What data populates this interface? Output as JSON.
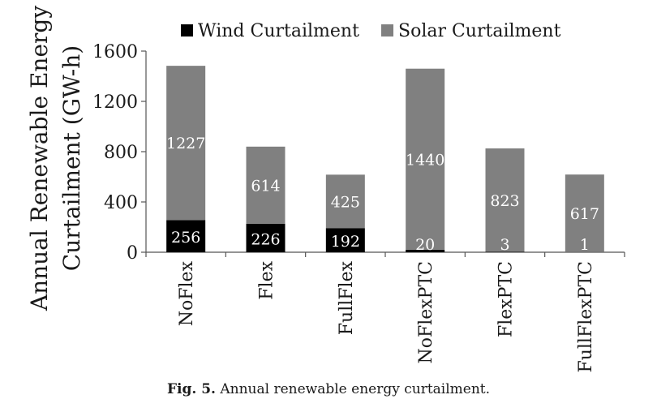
{
  "chart_data": {
    "type": "bar",
    "stacked": true,
    "categories": [
      "NoFlex",
      "Flex",
      "FullFlex",
      "NoFlexPTC",
      "FlexPTC",
      "FullFlexPTC"
    ],
    "series": [
      {
        "name": "Wind Curtailment",
        "values": [
          256,
          226,
          192,
          20,
          3,
          1
        ],
        "color": "#000000",
        "label_color": "#ffffff"
      },
      {
        "name": "Solar Curtailment",
        "values": [
          1227,
          614,
          425,
          1440,
          823,
          617
        ],
        "color": "#808080",
        "label_color": "#ffffff"
      }
    ],
    "ylabel": [
      "Annual Renewable Energy",
      "Curtailment  (GW-h)"
    ],
    "ylim": [
      0,
      1600
    ],
    "yticks": [
      0,
      400,
      800,
      1200,
      1600
    ],
    "grid": false,
    "legend_position": "top"
  },
  "caption": {
    "label": "Fig. 5.",
    "text": "Annual renewable energy curtailment."
  }
}
